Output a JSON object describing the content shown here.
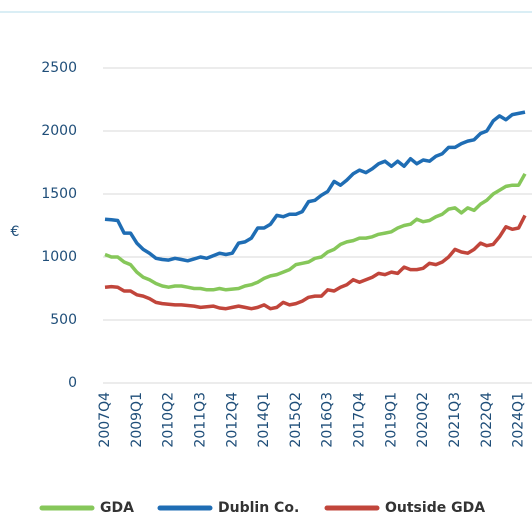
{
  "chart_data": {
    "type": "line",
    "y_label": "€",
    "categories": [
      "2007Q4",
      null,
      null,
      null,
      null,
      "2009Q1",
      null,
      null,
      null,
      null,
      "2010Q2",
      null,
      null,
      null,
      null,
      "2011Q3",
      null,
      null,
      null,
      null,
      "2012Q4",
      null,
      null,
      null,
      null,
      "2014Q1",
      null,
      null,
      null,
      null,
      "2015Q2",
      null,
      null,
      null,
      null,
      "2016Q3",
      null,
      null,
      null,
      null,
      "2017Q4",
      null,
      null,
      null,
      null,
      "2019Q1",
      null,
      null,
      null,
      null,
      "2020Q2",
      null,
      null,
      null,
      null,
      "2021Q3",
      null,
      null,
      null,
      null,
      "2022Q4",
      null,
      null,
      null,
      null,
      "2024Q1",
      null
    ],
    "series": [
      {
        "name": "GDA",
        "color": "#86c75a",
        "values": [
          1020,
          1000,
          1000,
          960,
          940,
          880,
          840,
          820,
          790,
          770,
          760,
          770,
          770,
          760,
          750,
          750,
          740,
          740,
          750,
          740,
          745,
          750,
          770,
          780,
          800,
          830,
          850,
          860,
          880,
          900,
          940,
          950,
          960,
          990,
          1000,
          1040,
          1060,
          1100,
          1120,
          1130,
          1150,
          1150,
          1160,
          1180,
          1190,
          1200,
          1230,
          1250,
          1260,
          1300,
          1280,
          1290,
          1320,
          1340,
          1380,
          1390,
          1350,
          1390,
          1370,
          1420,
          1450,
          1500,
          1530,
          1560,
          1570,
          1570,
          1660
        ]
      },
      {
        "name": "Dublin Co.",
        "color": "#1f6db4",
        "values": [
          1300,
          1295,
          1290,
          1190,
          1190,
          1110,
          1060,
          1030,
          990,
          980,
          975,
          990,
          980,
          970,
          985,
          1000,
          990,
          1010,
          1030,
          1020,
          1030,
          1110,
          1120,
          1150,
          1230,
          1230,
          1260,
          1330,
          1320,
          1340,
          1340,
          1360,
          1440,
          1450,
          1490,
          1520,
          1600,
          1570,
          1610,
          1660,
          1690,
          1670,
          1700,
          1740,
          1760,
          1720,
          1760,
          1720,
          1780,
          1740,
          1770,
          1760,
          1800,
          1820,
          1870,
          1870,
          1900,
          1920,
          1930,
          1980,
          2000,
          2080,
          2120,
          2090,
          2130,
          2140,
          2150
        ]
      },
      {
        "name": "Outside GDA",
        "color": "#c1453b",
        "values": [
          760,
          765,
          760,
          730,
          730,
          700,
          690,
          670,
          640,
          630,
          625,
          620,
          620,
          615,
          610,
          600,
          605,
          610,
          595,
          590,
          600,
          610,
          600,
          590,
          600,
          620,
          590,
          600,
          640,
          620,
          630,
          650,
          680,
          690,
          690,
          740,
          730,
          760,
          780,
          820,
          800,
          820,
          840,
          870,
          860,
          880,
          870,
          920,
          900,
          900,
          910,
          950,
          940,
          960,
          1000,
          1060,
          1040,
          1030,
          1060,
          1110,
          1090,
          1100,
          1160,
          1240,
          1220,
          1230,
          1330
        ]
      }
    ],
    "ylim": [
      0,
      2500
    ],
    "yticks": [
      0,
      500,
      1000,
      1500,
      2000,
      2500
    ],
    "grid": true
  }
}
